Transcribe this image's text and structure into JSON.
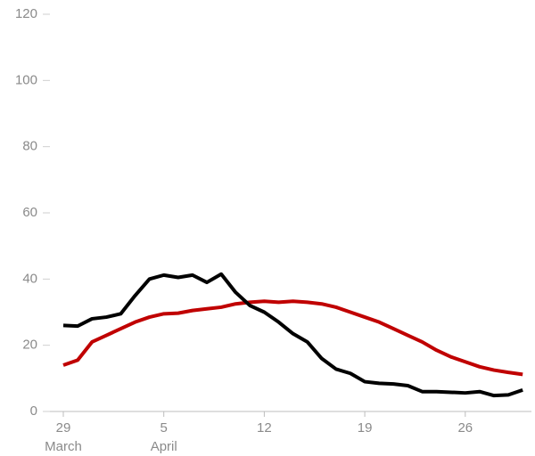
{
  "chart_data": {
    "type": "line",
    "categories": [
      "29",
      null,
      null,
      null,
      null,
      null,
      null,
      "5",
      null,
      null,
      null,
      null,
      null,
      null,
      "12",
      null,
      null,
      null,
      null,
      null,
      null,
      "19",
      null,
      null,
      null,
      null,
      null,
      null,
      "26",
      null,
      null,
      null,
      null
    ],
    "month_labels": [
      "March",
      null,
      null,
      null,
      null,
      null,
      null,
      "April",
      null,
      null,
      null,
      null,
      null,
      null,
      null,
      null,
      null,
      null,
      null,
      null,
      null,
      null,
      null,
      null,
      null,
      null,
      null,
      null,
      null,
      null,
      null,
      null,
      null
    ],
    "series": [
      {
        "color": "#c00000",
        "values": [
          14,
          15.5,
          21,
          23,
          25,
          27,
          28.5,
          29.5,
          29.7,
          30.5,
          31,
          31.5,
          32.5,
          33,
          33.3,
          33,
          33.3,
          33,
          32.5,
          31.5,
          30,
          28.5,
          27,
          25,
          23,
          21,
          18.5,
          16.5,
          15,
          13.5,
          12.5,
          11.8,
          11.2
        ]
      },
      {
        "color": "#000000",
        "values": [
          26,
          25.8,
          28,
          28.5,
          29.5,
          35,
          40,
          41.2,
          40.5,
          41.2,
          39,
          41.5,
          36,
          32,
          30,
          27,
          23.5,
          21,
          16,
          12.8,
          11.5,
          9,
          8.5,
          8.3,
          7.8,
          6,
          6,
          5.8,
          5.6,
          6,
          4.8,
          5,
          6.5
        ]
      }
    ],
    "ylim": [
      0,
      120
    ],
    "yticks": [
      0,
      20,
      40,
      60,
      80,
      100,
      120
    ]
  }
}
